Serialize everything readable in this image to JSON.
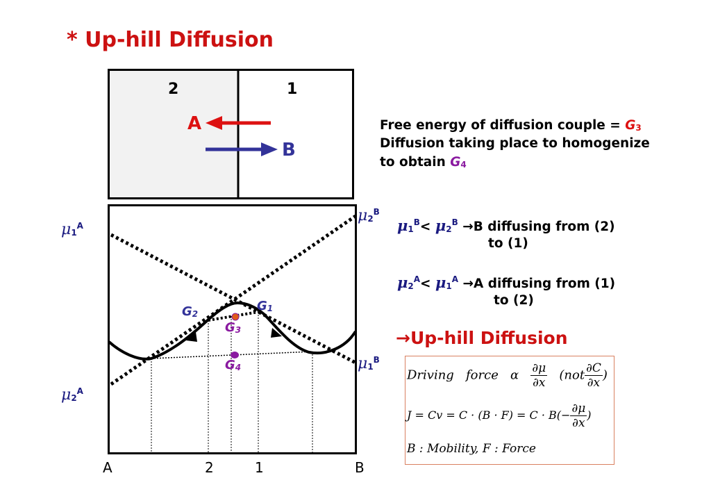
{
  "title": "* Up-hill Diffusion",
  "couple": {
    "left_label": "2",
    "right_label": "1",
    "arrow_a_label": "A",
    "arrow_b_label": "B"
  },
  "info": {
    "line1_prefix": "Free energy of diffusion couple = ",
    "g3": "G",
    "g3_sub": "3",
    "line2": "Diffusion taking place to homogenize",
    "line3_prefix": "to obtain ",
    "g4": "G",
    "g4_sub": "4"
  },
  "plot": {
    "mu": "μ",
    "mu1A_sub": "1",
    "mu1A_sup": "A",
    "mu2A_sub": "2",
    "mu2A_sup": "A",
    "mu2B_sub": "2",
    "mu2B_sup": "B",
    "mu1B_sub": "1",
    "mu1B_sup": "B",
    "G1": "G",
    "G1_sub": "1",
    "G2": "G",
    "G2_sub": "2",
    "G3": "G",
    "G3_sub": "3",
    "G4": "G",
    "G4_sub": "4",
    "x_A": "A",
    "x_2": "2",
    "x_1": "1",
    "x_B": "B"
  },
  "statements": {
    "s1_mid": "< ",
    "s1_text": "B diffusing from (2)",
    "s1_cont": "to (1)",
    "s2_mid": "< ",
    "s2_text": "A diffusing from (1)",
    "s2_cont": "to (2)",
    "arrow": "→"
  },
  "uphill": "Up-hill Diffusion",
  "equations": {
    "l1_a": "Driving",
    "l1_b": "force",
    "l1_c": "α",
    "l1_num": "∂μ",
    "l1_den": "∂x",
    "l1_not": "(not",
    "l1_num2": "∂C",
    "l1_den2": "∂x",
    "l1_close": ")",
    "l2_a": "J = Cv = C · (B · F) = C · B(−",
    "l2_num": "∂μ",
    "l2_den": "∂x",
    "l2_close": ")",
    "l3": "B : Mobility,   F : Force"
  },
  "colors": {
    "red": "#dd1111",
    "blue": "#333399",
    "purple": "#8a1aa0",
    "mu": "#1a1a80"
  }
}
